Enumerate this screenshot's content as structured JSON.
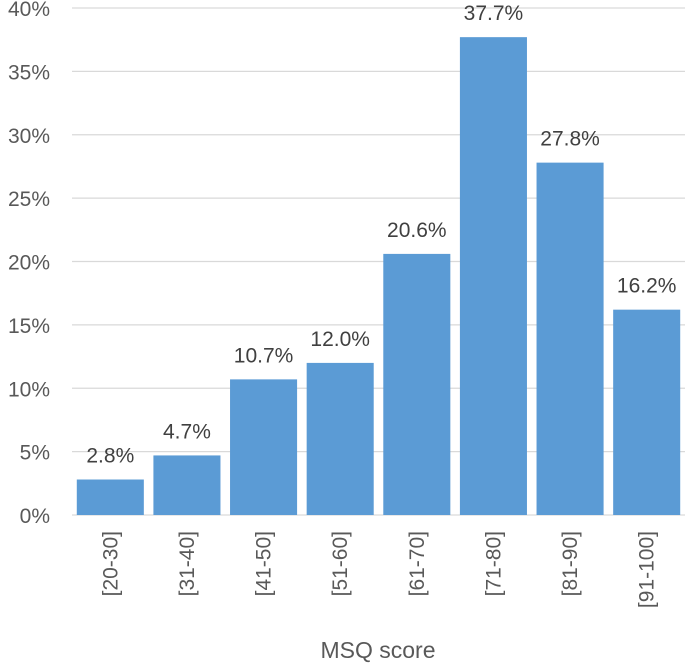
{
  "chart_data": {
    "type": "bar",
    "categories": [
      "[20-30]",
      "[31-40]",
      "[41-50]",
      "[51-60]",
      "[61-70]",
      "[71-80]",
      "[81-90]",
      "[91-100]"
    ],
    "values": [
      2.8,
      4.7,
      10.7,
      12.0,
      20.6,
      37.7,
      27.8,
      16.2
    ],
    "data_labels": [
      "2.8%",
      "4.7%",
      "10.7%",
      "12.0%",
      "20.6%",
      "37.7%",
      "27.8%",
      "16.2%"
    ],
    "xlabel": "MSQ score",
    "ylabel": "",
    "ylim": [
      0,
      40
    ],
    "yticks": [
      0,
      5,
      10,
      15,
      20,
      25,
      30,
      35,
      40
    ],
    "ytick_labels": [
      "0%",
      "5%",
      "10%",
      "15%",
      "20%",
      "25%",
      "30%",
      "35%",
      "40%"
    ],
    "grid": true,
    "bar_color": "#5B9BD5",
    "grid_color": "#D9D9D9"
  }
}
